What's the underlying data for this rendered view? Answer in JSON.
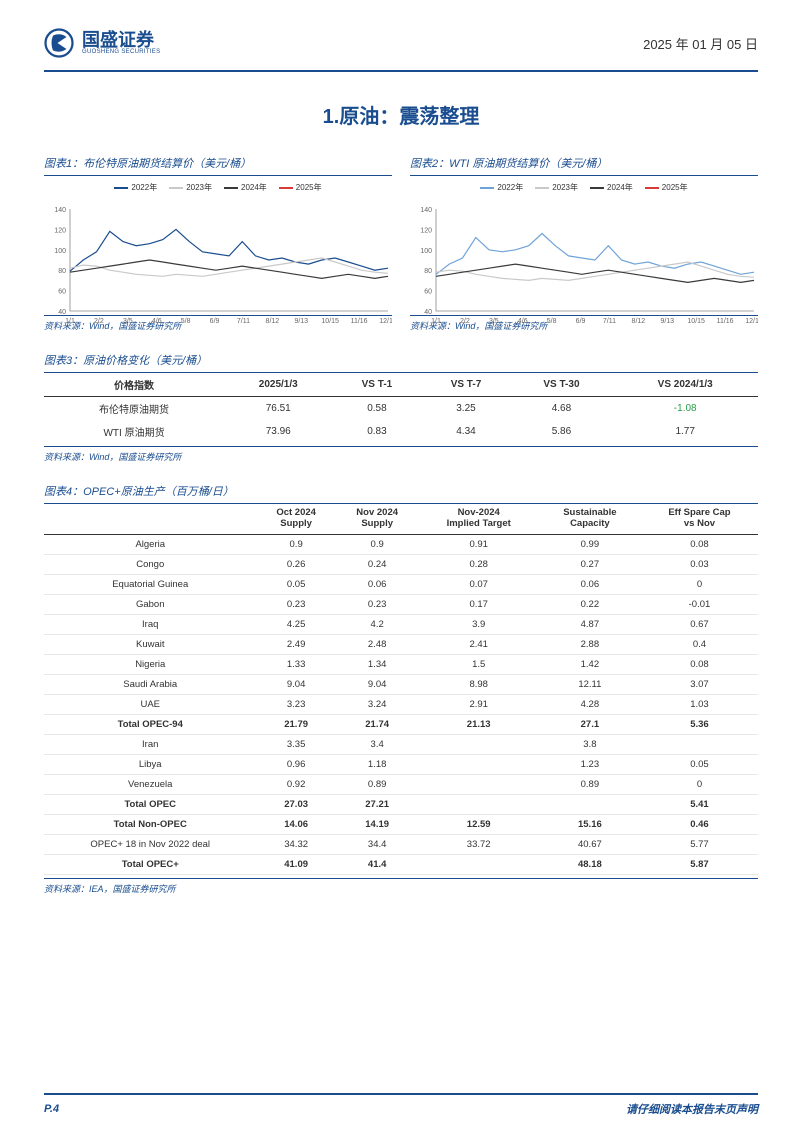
{
  "header": {
    "logo_cn": "国盛证券",
    "logo_en": "GUOSHENG SECURITIES",
    "date": "2025 年 01 月 05 日"
  },
  "section_title": "1.原油：震荡整理",
  "chart1": {
    "title": "图表1：布伦特原油期货结算价（美元/桶）",
    "type": "line",
    "x_labels": [
      "1/1",
      "2/2",
      "3/5",
      "4/6",
      "5/8",
      "6/9",
      "7/11",
      "8/12",
      "9/13",
      "10/15",
      "11/16",
      "12/18"
    ],
    "ylim": [
      40,
      140
    ],
    "ytick_step": 20,
    "background_color": "#ffffff",
    "axis_color": "#888888",
    "tick_fontsize": 7,
    "legend": [
      "2022年",
      "2023年",
      "2024年",
      "2025年"
    ],
    "legend_colors": [
      "#1a4d8f",
      "#c9c9c9",
      "#3a3a3a",
      "#d93a3a"
    ],
    "line_width": 1.2,
    "series": {
      "2022": [
        79,
        90,
        98,
        118,
        108,
        104,
        106,
        110,
        120,
        108,
        98,
        96,
        94,
        108,
        94,
        90,
        92,
        88,
        86,
        90,
        92,
        88,
        84,
        80,
        82
      ],
      "2023": [
        82,
        85,
        84,
        80,
        78,
        76,
        75,
        74,
        76,
        75,
        74,
        76,
        78,
        80,
        82,
        84,
        86,
        88,
        90,
        92,
        88,
        84,
        80,
        78,
        77
      ],
      "2024": [
        78,
        80,
        82,
        84,
        86,
        88,
        90,
        88,
        86,
        84,
        82,
        80,
        82,
        84,
        82,
        80,
        78,
        76,
        74,
        72,
        74,
        76,
        74,
        72,
        74
      ],
      "2025": [
        76
      ]
    },
    "source": "资料来源：Wind，国盛证券研究所"
  },
  "chart2": {
    "title": "图表2：WTI 原油期货结算价（美元/桶）",
    "type": "line",
    "x_labels": [
      "1/1",
      "2/2",
      "3/5",
      "4/6",
      "5/8",
      "6/9",
      "7/11",
      "8/12",
      "9/13",
      "10/15",
      "11/16",
      "12/18"
    ],
    "ylim": [
      40,
      140
    ],
    "ytick_step": 20,
    "background_color": "#ffffff",
    "axis_color": "#888888",
    "tick_fontsize": 7,
    "legend": [
      "2022年",
      "2023年",
      "2024年",
      "2025年"
    ],
    "legend_colors": [
      "#6fa3d8",
      "#c9c9c9",
      "#3a3a3a",
      "#d93a3a"
    ],
    "line_width": 1.2,
    "series": {
      "2022": [
        76,
        86,
        92,
        112,
        100,
        98,
        100,
        104,
        116,
        104,
        94,
        92,
        90,
        104,
        90,
        86,
        88,
        84,
        82,
        86,
        88,
        84,
        80,
        76,
        78
      ],
      "2023": [
        78,
        80,
        79,
        76,
        74,
        72,
        71,
        70,
        72,
        71,
        70,
        72,
        74,
        76,
        78,
        80,
        82,
        84,
        86,
        88,
        84,
        80,
        76,
        74,
        73
      ],
      "2024": [
        74,
        76,
        78,
        80,
        82,
        84,
        86,
        84,
        82,
        80,
        78,
        76,
        78,
        80,
        78,
        76,
        74,
        72,
        70,
        68,
        70,
        72,
        70,
        68,
        70
      ],
      "2025": [
        73
      ]
    },
    "source": "资料来源：Wind，国盛证券研究所"
  },
  "table3": {
    "title": "图表3：原油价格变化（美元/桶）",
    "columns": [
      "价格指数",
      "2025/1/3",
      "VS T-1",
      "VS T-7",
      "VS T-30",
      "VS 2024/1/3"
    ],
    "rows": [
      [
        "布伦特原油期货",
        "76.51",
        "0.58",
        "3.25",
        "4.68",
        "-1.08"
      ],
      [
        "WTI 原油期货",
        "73.96",
        "0.83",
        "4.34",
        "5.86",
        "1.77"
      ]
    ],
    "neg_color": "#2a9d4a",
    "source": "资料来源：Wind，国盛证券研究所"
  },
  "table4": {
    "title": "图表4：OPEC+原油生产（百万桶/日）",
    "columns": [
      "",
      "Oct 2024\nSupply",
      "Nov 2024\nSupply",
      "Nov-2024\nImplied Target",
      "Sustainable\nCapacity",
      "Eff Spare Cap\nvs Nov"
    ],
    "rows": [
      {
        "cells": [
          "Algeria",
          "0.9",
          "0.9",
          "0.91",
          "0.99",
          "0.08"
        ],
        "bold": false
      },
      {
        "cells": [
          "Congo",
          "0.26",
          "0.24",
          "0.28",
          "0.27",
          "0.03"
        ],
        "bold": false
      },
      {
        "cells": [
          "Equatorial Guinea",
          "0.05",
          "0.06",
          "0.07",
          "0.06",
          "0"
        ],
        "bold": false
      },
      {
        "cells": [
          "Gabon",
          "0.23",
          "0.23",
          "0.17",
          "0.22",
          "-0.01"
        ],
        "bold": false
      },
      {
        "cells": [
          "Iraq",
          "4.25",
          "4.2",
          "3.9",
          "4.87",
          "0.67"
        ],
        "bold": false
      },
      {
        "cells": [
          "Kuwait",
          "2.49",
          "2.48",
          "2.41",
          "2.88",
          "0.4"
        ],
        "bold": false
      },
      {
        "cells": [
          "Nigeria",
          "1.33",
          "1.34",
          "1.5",
          "1.42",
          "0.08"
        ],
        "bold": false
      },
      {
        "cells": [
          "Saudi Arabia",
          "9.04",
          "9.04",
          "8.98",
          "12.11",
          "3.07"
        ],
        "bold": false
      },
      {
        "cells": [
          "UAE",
          "3.23",
          "3.24",
          "2.91",
          "4.28",
          "1.03"
        ],
        "bold": false
      },
      {
        "cells": [
          "Total OPEC-94",
          "21.79",
          "21.74",
          "21.13",
          "27.1",
          "5.36"
        ],
        "bold": true
      },
      {
        "cells": [
          "Iran",
          "3.35",
          "3.4",
          "",
          "3.8",
          ""
        ],
        "bold": false
      },
      {
        "cells": [
          "Libya",
          "0.96",
          "1.18",
          "",
          "1.23",
          "0.05"
        ],
        "bold": false
      },
      {
        "cells": [
          "Venezuela",
          "0.92",
          "0.89",
          "",
          "0.89",
          "0"
        ],
        "bold": false
      },
      {
        "cells": [
          "Total OPEC",
          "27.03",
          "27.21",
          "",
          "",
          "5.41"
        ],
        "bold": true
      },
      {
        "cells": [
          "Total Non-OPEC",
          "14.06",
          "14.19",
          "12.59",
          "15.16",
          "0.46"
        ],
        "bold": true
      },
      {
        "cells": [
          "OPEC+ 18 in Nov 2022 deal",
          "34.32",
          "34.4",
          "33.72",
          "40.67",
          "5.77"
        ],
        "bold": false
      },
      {
        "cells": [
          "Total OPEC+",
          "41.09",
          "41.4",
          "",
          "48.18",
          "5.87"
        ],
        "bold": true
      }
    ],
    "source": "资料来源：IEA，国盛证券研究所"
  },
  "footer": {
    "page": "P.4",
    "note": "请仔细阅读本报告末页声明"
  }
}
